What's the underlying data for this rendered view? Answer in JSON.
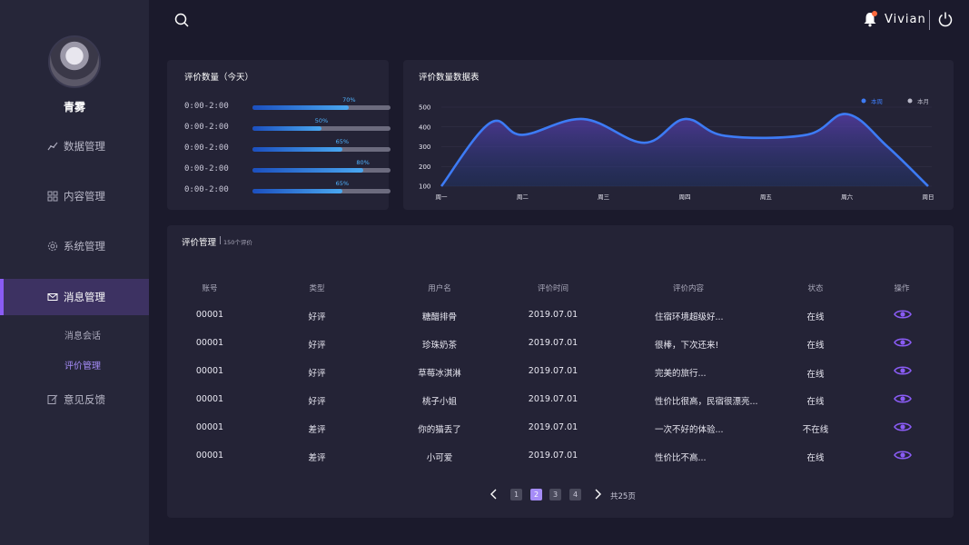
{
  "user": {
    "name": "青雾",
    "top_name": "Vivian"
  },
  "nav": [
    {
      "label": "数据管理",
      "icon": "chart-line-icon"
    },
    {
      "label": "内容管理",
      "icon": "grid-icon"
    },
    {
      "label": "系统管理",
      "icon": "gear-icon"
    },
    {
      "label": "消息管理",
      "icon": "mail-icon"
    },
    {
      "label": "意见反馈",
      "icon": "edit-icon"
    }
  ],
  "sub_nav": [
    {
      "label": "消息会话"
    },
    {
      "label": "评价管理"
    }
  ],
  "progress_panel": {
    "title": "评价数量（今天）",
    "rows": [
      {
        "label": "0:00-2:00",
        "pct_text": "70%",
        "pct": 0.7
      },
      {
        "label": "0:00-2:00",
        "pct_text": "50%",
        "pct": 0.5
      },
      {
        "label": "0:00-2:00",
        "pct_text": "65%",
        "pct": 0.65
      },
      {
        "label": "0:00-2:00",
        "pct_text": "80%",
        "pct": 0.8
      },
      {
        "label": "0:00-2:00",
        "pct_text": "65%",
        "pct": 0.65
      }
    ]
  },
  "chart_panel": {
    "title": "评价数量数据表",
    "legend": [
      {
        "label": "本周",
        "color": "#3d7bf5"
      },
      {
        "label": "本月",
        "color": "#b9b8c8"
      }
    ]
  },
  "chart_data": {
    "type": "area",
    "categories": [
      "周一",
      "周二",
      "周三",
      "周四",
      "周五",
      "周六",
      "周日"
    ],
    "yticks": [
      "500",
      "400",
      "300",
      "200",
      "100"
    ],
    "ylim": [
      100,
      500
    ],
    "x": [
      0,
      0.6,
      1,
      1.75,
      2.5,
      3,
      3.5,
      4.5,
      5,
      5.5,
      6
    ],
    "series": [
      {
        "name": "本周",
        "values": [
          100,
          420,
          360,
          440,
          320,
          440,
          355,
          360,
          465,
          300,
          100
        ]
      }
    ],
    "legend_position": "top-right",
    "grid": true
  },
  "table": {
    "title": "评价管理",
    "subtitle": "150个评价",
    "headers": [
      "账号",
      "类型",
      "用户名",
      "评价时间",
      "评价内容",
      "状态",
      "操作"
    ],
    "rows": [
      [
        "00001",
        "好评",
        "糖醋排骨",
        "2019.07.01",
        "住宿环境超级好...",
        "在线"
      ],
      [
        "00001",
        "好评",
        "珍珠奶茶",
        "2019.07.01",
        "很棒，下次还来!",
        "在线"
      ],
      [
        "00001",
        "好评",
        "草莓冰淇淋",
        "2019.07.01",
        "完美的旅行...",
        "在线"
      ],
      [
        "00001",
        "好评",
        "桃子小姐",
        "2019.07.01",
        "性价比很高，民宿很漂亮...",
        "在线"
      ],
      [
        "00001",
        "差评",
        "你的猫丢了",
        "2019.07.01",
        "一次不好的体验...",
        "不在线"
      ],
      [
        "00001",
        "差评",
        "小可爱",
        "2019.07.01",
        "性价比不高...",
        "在线"
      ]
    ]
  },
  "pagination": {
    "pages": [
      "1",
      "2",
      "3",
      "4"
    ],
    "current": "2",
    "total": "共25页"
  },
  "colors": {
    "accent": "#8a5cf5",
    "panel": "#242336",
    "background": "#1b1a2c",
    "line": "#3d7bf5"
  }
}
